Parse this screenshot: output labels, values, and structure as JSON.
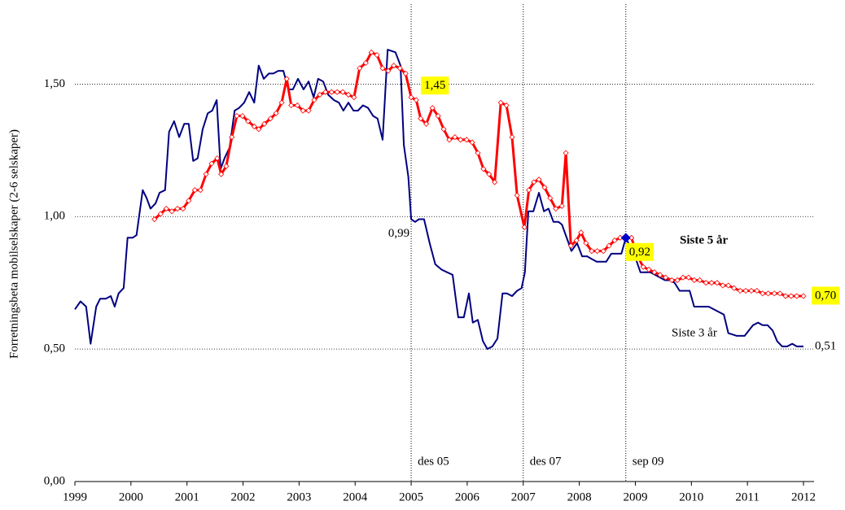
{
  "chart_data": {
    "type": "line",
    "y_label": "Forretningsbeta mobilselskaper (2-6 selskaper)",
    "xlim": [
      1999,
      2012
    ],
    "xticks": [
      1999,
      2000,
      2001,
      2002,
      2003,
      2004,
      2005,
      2006,
      2007,
      2008,
      2009,
      2010,
      2011,
      2012
    ],
    "ylim": [
      0,
      1.75
    ],
    "yticks": [
      {
        "value": 0,
        "label": "0,00"
      },
      {
        "value": 0.5,
        "label": "0,50"
      },
      {
        "value": 1,
        "label": "1,00"
      },
      {
        "value": 1.5,
        "label": "1,50"
      }
    ],
    "grid": true,
    "series": [
      {
        "name": "Siste 3 år",
        "color": "#000080",
        "markers": false,
        "x": [
          1999.0,
          1999.1,
          1999.2,
          1999.28,
          1999.38,
          1999.45,
          1999.55,
          1999.64,
          1999.71,
          1999.78,
          1999.87,
          1999.94,
          2000.03,
          2000.1,
          2000.21,
          2000.28,
          2000.35,
          2000.44,
          2000.51,
          2000.61,
          2000.68,
          2000.77,
          2000.86,
          2000.95,
          2001.03,
          2001.11,
          2001.19,
          2001.28,
          2001.37,
          2001.45,
          2001.53,
          2001.6,
          2001.67,
          2001.76,
          2001.85,
          2001.93,
          2002.02,
          2002.11,
          2002.2,
          2002.28,
          2002.37,
          2002.46,
          2002.54,
          2002.63,
          2002.72,
          2002.81,
          2002.89,
          2002.98,
          2003.08,
          2003.17,
          2003.26,
          2003.34,
          2003.43,
          2003.52,
          2003.62,
          2003.71,
          2003.79,
          2003.88,
          2003.97,
          2004.05,
          2004.14,
          2004.23,
          2004.32,
          2004.4,
          2004.49,
          2004.58,
          2004.72,
          2004.81,
          2004.87,
          2004.95,
          2005.0,
          2005.07,
          2005.14,
          2005.23,
          2005.33,
          2005.43,
          2005.54,
          2005.64,
          2005.74,
          2005.84,
          2005.94,
          2006.03,
          2006.1,
          2006.19,
          2006.28,
          2006.36,
          2006.45,
          2006.54,
          2006.63,
          2006.71,
          2006.8,
          2006.89,
          2006.97,
          2007.03,
          2007.09,
          2007.18,
          2007.28,
          2007.37,
          2007.45,
          2007.54,
          2007.63,
          2007.69,
          2007.86,
          2007.96,
          2008.05,
          2008.14,
          2008.22,
          2008.31,
          2008.4,
          2008.48,
          2008.57,
          2008.66,
          2008.75,
          2008.83,
          2008.92,
          2009.01,
          2009.09,
          2009.18,
          2009.27,
          2009.44,
          2009.53,
          2009.62,
          2009.7,
          2009.79,
          2009.88,
          2009.97,
          2010.05,
          2010.14,
          2010.23,
          2010.31,
          2010.4,
          2010.49,
          2010.58,
          2010.66,
          2010.81,
          2010.95,
          2011.1,
          2011.19,
          2011.27,
          2011.36,
          2011.45,
          2011.53,
          2011.62,
          2011.71,
          2011.8,
          2011.88,
          2012.0
        ],
        "values": [
          0.65,
          0.68,
          0.66,
          0.52,
          0.66,
          0.69,
          0.69,
          0.7,
          0.66,
          0.71,
          0.73,
          0.92,
          0.92,
          0.93,
          1.1,
          1.07,
          1.03,
          1.05,
          1.09,
          1.1,
          1.32,
          1.36,
          1.3,
          1.35,
          1.35,
          1.21,
          1.22,
          1.33,
          1.39,
          1.4,
          1.44,
          1.18,
          1.22,
          1.26,
          1.4,
          1.41,
          1.43,
          1.47,
          1.43,
          1.57,
          1.52,
          1.54,
          1.54,
          1.55,
          1.55,
          1.48,
          1.48,
          1.52,
          1.48,
          1.51,
          1.45,
          1.52,
          1.51,
          1.46,
          1.44,
          1.43,
          1.4,
          1.43,
          1.4,
          1.4,
          1.42,
          1.41,
          1.38,
          1.37,
          1.29,
          1.63,
          1.62,
          1.57,
          1.27,
          1.15,
          0.99,
          0.98,
          0.99,
          0.99,
          0.9,
          0.82,
          0.8,
          0.79,
          0.78,
          0.62,
          0.62,
          0.71,
          0.6,
          0.61,
          0.53,
          0.5,
          0.51,
          0.54,
          0.71,
          0.71,
          0.7,
          0.72,
          0.73,
          0.79,
          1.02,
          1.02,
          1.09,
          1.02,
          1.03,
          0.98,
          0.98,
          0.97,
          0.87,
          0.9,
          0.85,
          0.85,
          0.84,
          0.83,
          0.83,
          0.83,
          0.86,
          0.86,
          0.86,
          0.92,
          0.88,
          0.84,
          0.79,
          0.79,
          0.79,
          0.77,
          0.76,
          0.76,
          0.75,
          0.72,
          0.72,
          0.72,
          0.66,
          0.66,
          0.66,
          0.66,
          0.65,
          0.64,
          0.63,
          0.56,
          0.55,
          0.55,
          0.59,
          0.6,
          0.59,
          0.59,
          0.57,
          0.53,
          0.51,
          0.51,
          0.52,
          0.51,
          0.51
        ]
      },
      {
        "name": "Siste 5 år",
        "color": "#ff0000",
        "markers": true,
        "x": [
          2000.42,
          2000.53,
          2000.63,
          2000.73,
          2000.83,
          2000.93,
          2001.03,
          2001.14,
          2001.24,
          2001.34,
          2001.44,
          2001.54,
          2001.61,
          2001.7,
          2001.8,
          2001.89,
          2001.99,
          2002.09,
          2002.2,
          2002.28,
          2002.38,
          2002.49,
          2002.59,
          2002.69,
          2002.78,
          2002.86,
          2002.97,
          2003.07,
          2003.17,
          2003.27,
          2003.37,
          2003.47,
          2003.58,
          2003.68,
          2003.78,
          2003.88,
          2003.98,
          2004.08,
          2004.19,
          2004.29,
          2004.39,
          2004.49,
          2004.59,
          2004.69,
          2004.8,
          2004.9,
          2005.0,
          2005.09,
          2005.17,
          2005.27,
          2005.38,
          2005.48,
          2005.58,
          2005.68,
          2005.78,
          2005.88,
          2005.99,
          2006.09,
          2006.19,
          2006.29,
          2006.39,
          2006.49,
          2006.6,
          2006.7,
          2006.8,
          2006.89,
          2007.02,
          2007.1,
          2007.19,
          2007.28,
          2007.38,
          2007.48,
          2007.58,
          2007.69,
          2007.76,
          2007.85,
          2007.95,
          2008.03,
          2008.12,
          2008.22,
          2008.32,
          2008.43,
          2008.53,
          2008.63,
          2008.73,
          2008.83,
          2008.93,
          2009.04,
          2009.14,
          2009.24,
          2009.34,
          2009.44,
          2009.54,
          2009.65,
          2009.75,
          2009.85,
          2009.95,
          2010.05,
          2010.15,
          2010.26,
          2010.36,
          2010.46,
          2010.56,
          2010.66,
          2010.76,
          2010.87,
          2010.97,
          2011.07,
          2011.17,
          2011.27,
          2011.37,
          2011.48,
          2011.58,
          2011.68,
          2011.78,
          2011.88,
          2012.0
        ],
        "values": [
          0.99,
          1.01,
          1.03,
          1.02,
          1.03,
          1.03,
          1.06,
          1.1,
          1.1,
          1.16,
          1.2,
          1.22,
          1.16,
          1.19,
          1.3,
          1.38,
          1.38,
          1.36,
          1.34,
          1.33,
          1.35,
          1.37,
          1.39,
          1.43,
          1.52,
          1.42,
          1.42,
          1.4,
          1.4,
          1.44,
          1.46,
          1.47,
          1.47,
          1.47,
          1.47,
          1.46,
          1.45,
          1.56,
          1.58,
          1.62,
          1.61,
          1.56,
          1.55,
          1.57,
          1.56,
          1.54,
          1.45,
          1.44,
          1.37,
          1.35,
          1.41,
          1.38,
          1.33,
          1.29,
          1.3,
          1.29,
          1.29,
          1.28,
          1.24,
          1.18,
          1.16,
          1.13,
          1.43,
          1.42,
          1.3,
          1.08,
          0.96,
          1.1,
          1.13,
          1.14,
          1.11,
          1.07,
          1.03,
          1.04,
          1.24,
          0.89,
          0.91,
          0.94,
          0.9,
          0.87,
          0.87,
          0.87,
          0.89,
          0.91,
          0.92,
          0.92,
          0.92,
          0.85,
          0.81,
          0.8,
          0.79,
          0.78,
          0.77,
          0.76,
          0.76,
          0.77,
          0.77,
          0.76,
          0.76,
          0.75,
          0.75,
          0.75,
          0.74,
          0.74,
          0.73,
          0.72,
          0.72,
          0.72,
          0.72,
          0.71,
          0.71,
          0.71,
          0.71,
          0.7,
          0.7,
          0.7,
          0.7
        ]
      }
    ],
    "vlines": [
      {
        "x": 2005,
        "label": "des 05"
      },
      {
        "x": 2007,
        "label": "des 07"
      },
      {
        "x": 2008.83,
        "label": "sep 09"
      }
    ],
    "annotations": [
      {
        "text": "1,45",
        "x": 2005,
        "y": 1.45,
        "highlight": true,
        "anchor": "upper-right"
      },
      {
        "text": "0,99",
        "x": 2005,
        "y": 0.99,
        "highlight": false,
        "anchor": "lower-left"
      },
      {
        "text": "0,92",
        "x": 2008.83,
        "y": 0.92,
        "highlight": true,
        "anchor": "lower-right",
        "point": true
      },
      {
        "text": "0,70",
        "x": 2012,
        "y": 0.7,
        "highlight": true,
        "anchor": "right"
      },
      {
        "text": "0,51",
        "x": 2012,
        "y": 0.51,
        "highlight": false,
        "anchor": "right"
      }
    ]
  }
}
